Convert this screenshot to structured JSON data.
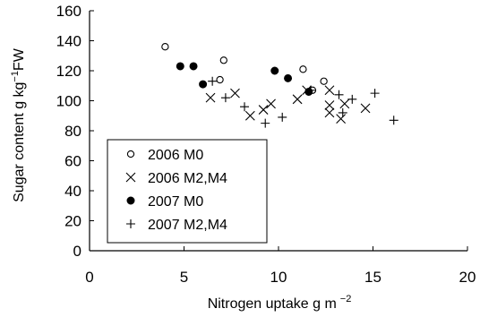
{
  "chart_data": {
    "type": "scatter",
    "xlabel": "Nitrogen uptake g m",
    "xlabel_sup": "−2",
    "ylabel": "Sugar content g kg",
    "ylabel_sup": "−1",
    "ylabel_suffix": "FW",
    "xlim": [
      0,
      20
    ],
    "ylim": [
      0,
      160
    ],
    "xticks": [
      0,
      5,
      10,
      15,
      20
    ],
    "yticks": [
      0,
      20,
      40,
      60,
      80,
      100,
      120,
      140,
      160
    ],
    "grid": false,
    "legend_position": "bottom-left",
    "series": [
      {
        "name": "2006 M0",
        "marker": "open-circle",
        "points": [
          [
            4.0,
            136
          ],
          [
            6.9,
            114
          ],
          [
            7.1,
            127
          ],
          [
            11.3,
            121
          ],
          [
            11.8,
            107
          ],
          [
            12.4,
            113
          ]
        ]
      },
      {
        "name": "2006 M2,M4",
        "marker": "x",
        "points": [
          [
            6.4,
            102
          ],
          [
            7.7,
            105
          ],
          [
            8.5,
            90
          ],
          [
            9.2,
            94
          ],
          [
            9.6,
            98
          ],
          [
            11.0,
            101
          ],
          [
            11.5,
            107
          ],
          [
            12.7,
            107
          ],
          [
            12.7,
            97
          ],
          [
            12.7,
            92
          ],
          [
            13.3,
            88
          ],
          [
            13.5,
            98
          ],
          [
            14.6,
            95
          ]
        ]
      },
      {
        "name": "2007 M0",
        "marker": "filled-circle",
        "points": [
          [
            4.8,
            123
          ],
          [
            5.5,
            123
          ],
          [
            6.0,
            111
          ],
          [
            9.8,
            120
          ],
          [
            10.5,
            115
          ],
          [
            11.6,
            106
          ]
        ]
      },
      {
        "name": "2007 M2,M4",
        "marker": "plus",
        "points": [
          [
            6.5,
            113
          ],
          [
            7.2,
            102
          ],
          [
            8.2,
            96
          ],
          [
            9.3,
            85
          ],
          [
            10.2,
            89
          ],
          [
            11.7,
            107
          ],
          [
            13.2,
            104
          ],
          [
            13.4,
            92
          ],
          [
            13.9,
            101
          ],
          [
            15.1,
            105
          ],
          [
            16.1,
            87
          ]
        ]
      }
    ]
  }
}
